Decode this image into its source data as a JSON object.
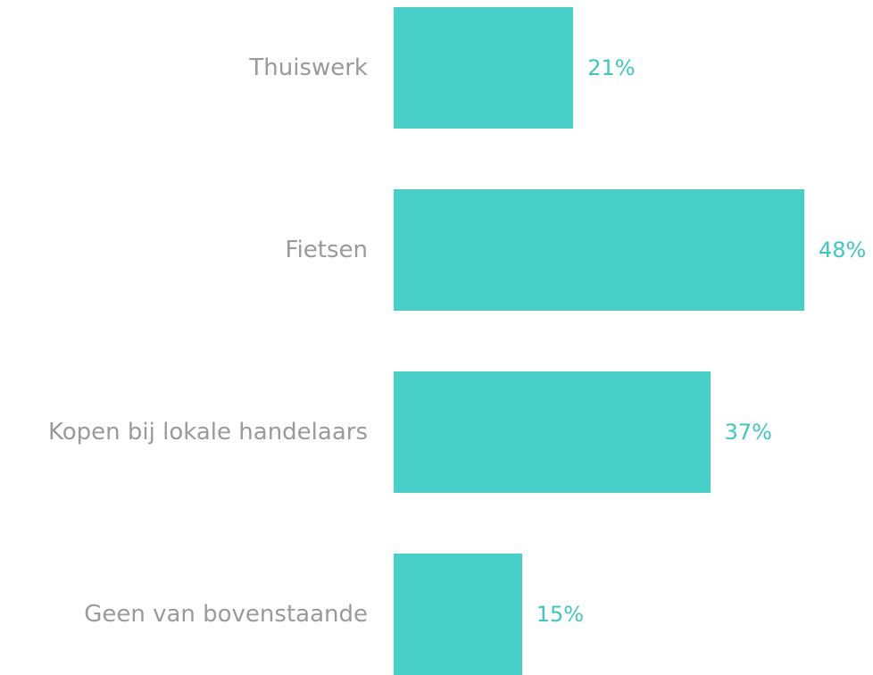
{
  "chart_data": {
    "type": "bar",
    "orientation": "horizontal",
    "categories": [
      "Thuiswerk",
      "Fietsen",
      "Kopen bij lokale handelaars",
      "Geen van bovenstaande"
    ],
    "values": [
      21,
      48,
      37,
      15
    ],
    "value_labels": [
      "21%",
      "48%",
      "37%",
      "15%"
    ],
    "unit": "%",
    "xlim": [
      0,
      48
    ],
    "grid": false,
    "legend": "none",
    "colors": {
      "bar": "#48d0c8",
      "value_label": "#3fc7bf",
      "category_label": "#9a9a9a"
    }
  }
}
